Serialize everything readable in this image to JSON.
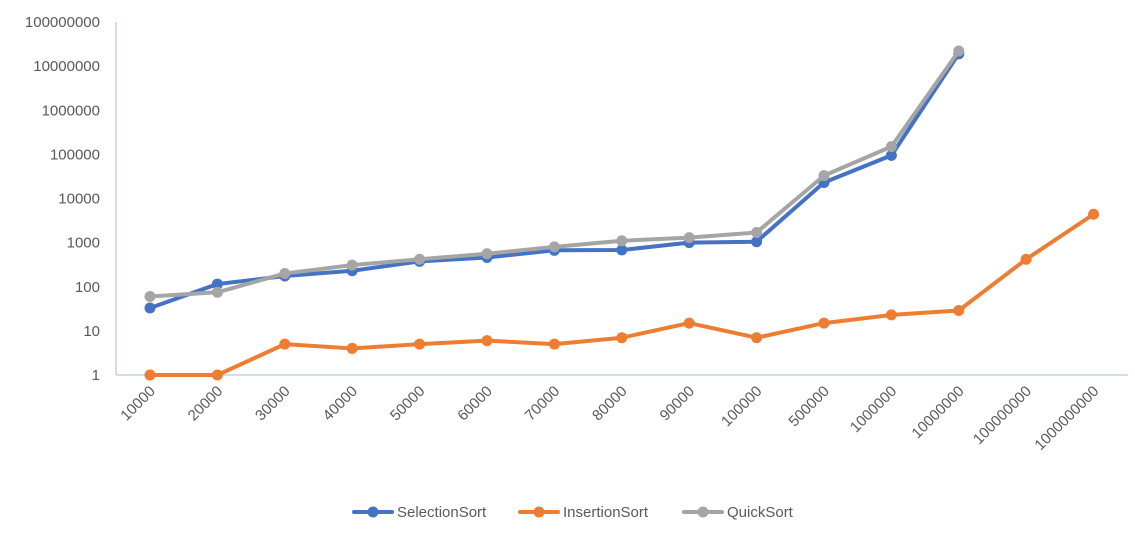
{
  "chart_data": {
    "type": "line",
    "categories": [
      "10000",
      "20000",
      "30000",
      "40000",
      "50000",
      "60000",
      "70000",
      "80000",
      "90000",
      "100000",
      "500000",
      "1000000",
      "10000000",
      "100000000",
      "1000000000"
    ],
    "y_scale": "log",
    "ylim": [
      1,
      100000000
    ],
    "y_ticks": [
      "1",
      "10",
      "100",
      "1000",
      "10000",
      "100000",
      "1000000",
      "10000000",
      "100000000"
    ],
    "grid": false,
    "legend_position": "bottom",
    "title": "",
    "xlabel": "",
    "ylabel": "",
    "series": [
      {
        "name": "SelectionSort",
        "color": "#4472C4",
        "values": [
          33,
          115,
          175,
          230,
          375,
          460,
          670,
          680,
          1000,
          1050,
          23000,
          95000,
          19000000,
          null,
          null
        ]
      },
      {
        "name": "InsertionSort",
        "color": "#ED7D31",
        "values": [
          1,
          1,
          5,
          4,
          5,
          6,
          5,
          7,
          15,
          7,
          15,
          23,
          29,
          420,
          4400
        ]
      },
      {
        "name": "QuickSort",
        "color": "#A5A5A5",
        "values": [
          60,
          75,
          200,
          310,
          420,
          560,
          800,
          1100,
          1300,
          1700,
          33000,
          150000,
          22000000,
          null,
          null
        ]
      }
    ]
  }
}
